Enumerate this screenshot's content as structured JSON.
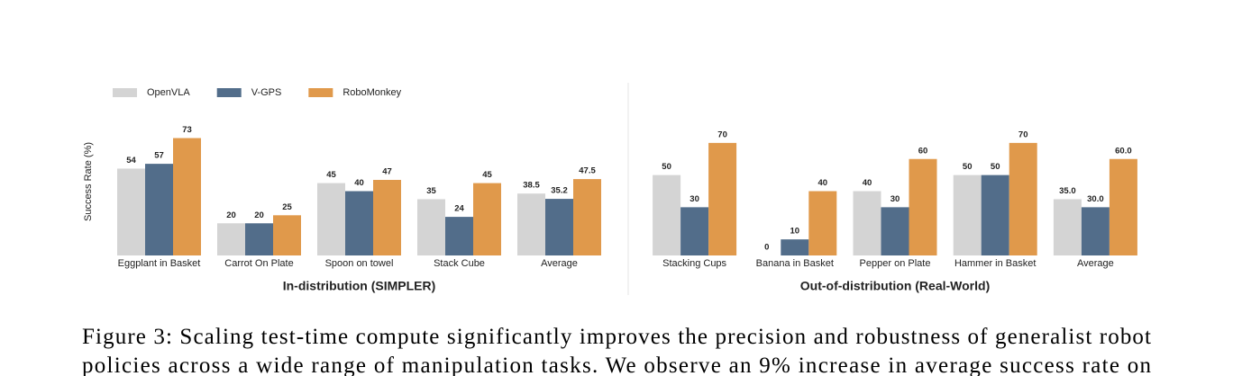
{
  "chart_data": [
    {
      "type": "bar",
      "ylabel": "Success Rate (%)",
      "xlabel": "In-distribution (SIMPLER)",
      "categories": [
        "Eggplant in Basket",
        "Carrot On Plate",
        "Spoon on towel",
        "Stack Cube",
        "Average"
      ],
      "series": [
        {
          "name": "OpenVLA",
          "color": "#d4d4d4",
          "values": [
            54,
            20,
            45,
            35,
            38.5
          ]
        },
        {
          "name": "V-GPS",
          "color": "#526d8a",
          "values": [
            57,
            20,
            40,
            24,
            35.2
          ]
        },
        {
          "name": "RoboMonkey",
          "color": "#e0994b",
          "values": [
            73,
            25,
            47,
            45,
            47.5
          ]
        }
      ],
      "ylim": [
        0,
        80
      ],
      "legend": "top-left"
    },
    {
      "type": "bar",
      "xlabel": "Out-of-distribution (Real-World)",
      "categories": [
        "Stacking Cups",
        "Banana in Basket",
        "Pepper on Plate",
        "Hammer in Basket",
        "Average"
      ],
      "series": [
        {
          "color": "#d4d4d4",
          "values": [
            50,
            0,
            40,
            50,
            35
          ],
          "value_labels": [
            "50",
            "0",
            "40",
            "50",
            "35.0"
          ]
        },
        {
          "color": "#526d8a",
          "values": [
            30,
            10,
            30,
            50,
            30
          ],
          "value_labels": [
            "30",
            "10",
            "30",
            "50",
            "30.0"
          ]
        },
        {
          "color": "#e0994b",
          "values": [
            70,
            40,
            60,
            70,
            60
          ],
          "value_labels": [
            "70",
            "40",
            "60",
            "70",
            "60.0"
          ]
        }
      ],
      "ylim": [
        0,
        80
      ]
    }
  ],
  "caption_lines": [
    "Figure 3: Scaling test-time compute significantly improves the precision and robustness of generalist robot",
    "policies across a wide range of manipulation tasks. We observe an 9% increase in average success rate on"
  ]
}
